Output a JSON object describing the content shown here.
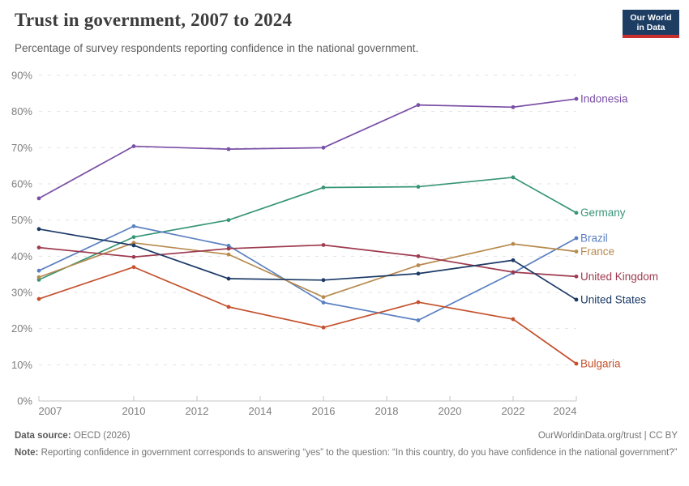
{
  "header": {
    "title": "Trust in government, 2007 to 2024",
    "subtitle": "Percentage of survey respondents reporting confidence in the national government.",
    "logo": {
      "line1": "Our World",
      "line2": "in Data",
      "bg_color": "#1d3d63",
      "accent_color": "#c9302e"
    }
  },
  "chart_data": {
    "type": "line",
    "title": "Trust in government, 2007 to 2024",
    "x": [
      2007,
      2010,
      2013,
      2016,
      2019,
      2022,
      2024
    ],
    "x_tick_labels": [
      "2007",
      "2010",
      "2012",
      "2014",
      "2016",
      "2018",
      "2020",
      "2022",
      "2024"
    ],
    "x_tick_years": [
      2007,
      2010,
      2012,
      2014,
      2016,
      2018,
      2020,
      2022,
      2024
    ],
    "xlim": [
      2007,
      2024
    ],
    "ylim": [
      0,
      90
    ],
    "y_ticks": [
      0,
      10,
      20,
      30,
      40,
      50,
      60,
      70,
      80,
      90
    ],
    "y_tick_suffix": "%",
    "grid": "horizontal-dashed",
    "legend_position": "right-edge-labels",
    "series": [
      {
        "name": "Indonesia",
        "color": "#7a4fa5",
        "values": [
          56,
          70.4,
          69.6,
          70,
          81.8,
          81.2,
          83.5
        ]
      },
      {
        "name": "Germany",
        "color": "#379577",
        "values": [
          33.5,
          45.3,
          50,
          59,
          59.2,
          61.8,
          52
        ]
      },
      {
        "name": "Brazil",
        "color": "#5b80c1",
        "values": [
          36,
          48.3,
          42.9,
          27.2,
          22.3,
          35.4,
          45
        ]
      },
      {
        "name": "France",
        "color": "#b78a4e",
        "values": [
          34.2,
          43.7,
          40.5,
          28.7,
          37.5,
          43.4,
          41.3
        ]
      },
      {
        "name": "United Kingdom",
        "color": "#9e3a4e",
        "values": [
          42.4,
          39.8,
          42.1,
          43.1,
          40,
          35.6,
          34.4
        ]
      },
      {
        "name": "United States",
        "color": "#1c3a66",
        "values": [
          47.5,
          43,
          33.8,
          33.4,
          35.2,
          38.9,
          28
        ]
      },
      {
        "name": "Bulgaria",
        "color": "#c4512c",
        "values": [
          28.2,
          37,
          26,
          20.3,
          27.3,
          22.6,
          10.3
        ]
      }
    ]
  },
  "footer": {
    "source_label": "Data source:",
    "source_value": "OECD (2026)",
    "attribution": "OurWorldinData.org/trust | CC BY",
    "note_label": "Note:",
    "note_text": "Reporting confidence in government corresponds to answering “yes” to the question: “In this country, do you have confidence in the national government?”"
  }
}
